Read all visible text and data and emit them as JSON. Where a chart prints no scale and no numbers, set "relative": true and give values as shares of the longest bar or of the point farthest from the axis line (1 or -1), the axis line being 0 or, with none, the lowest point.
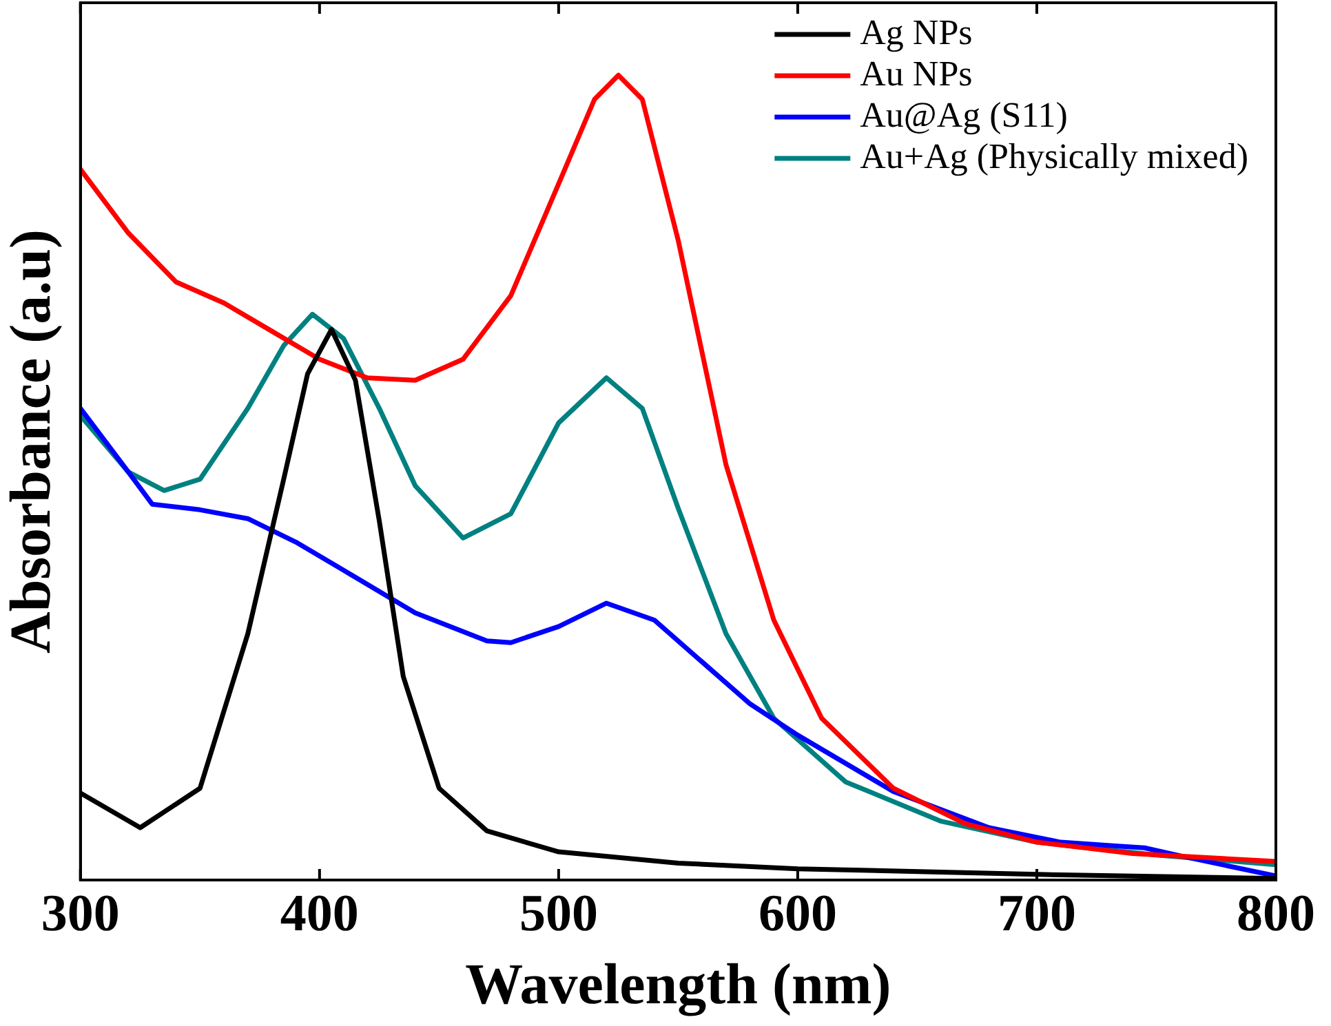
{
  "chart_data": {
    "type": "line",
    "xlabel": "Wavelength (nm)",
    "ylabel": "Absorbance (a.u)",
    "relative": true,
    "xlim": [
      300,
      800
    ],
    "xticks": [
      300,
      400,
      500,
      600,
      700,
      800
    ],
    "tick_labels": "x",
    "legend": "top right",
    "marker": "none",
    "line_style": "solid",
    "series": [
      {
        "name": "Ag NPs",
        "color": "#000000",
        "x": [
          300,
          325,
          350,
          370,
          385,
          395,
          405,
          415,
          425,
          435,
          450,
          470,
          500,
          550,
          600,
          700,
          800
        ],
        "values": [
          0.108,
          0.065,
          0.114,
          0.306,
          0.498,
          0.629,
          0.684,
          0.621,
          0.446,
          0.253,
          0.114,
          0.061,
          0.035,
          0.021,
          0.014,
          0.007,
          0.002
        ]
      },
      {
        "name": "Au NPs",
        "color": "#ff0000",
        "x": [
          300,
          320,
          340,
          360,
          380,
          400,
          420,
          440,
          460,
          480,
          500,
          515,
          525,
          535,
          550,
          570,
          590,
          610,
          640,
          670,
          700,
          740,
          800
        ],
        "values": [
          0.883,
          0.804,
          0.743,
          0.717,
          0.682,
          0.647,
          0.624,
          0.621,
          0.647,
          0.726,
          0.865,
          0.97,
          1,
          0.97,
          0.795,
          0.516,
          0.323,
          0.201,
          0.114,
          0.07,
          0.047,
          0.033,
          0.023
        ]
      },
      {
        "name": "Au@Ag (S11)",
        "color": "#0000ff",
        "x": [
          300,
          320,
          330,
          350,
          370,
          390,
          410,
          440,
          470,
          480,
          500,
          520,
          540,
          560,
          580,
          600,
          640,
          680,
          710,
          735,
          745,
          760,
          800
        ],
        "values": [
          0.586,
          0.507,
          0.467,
          0.46,
          0.449,
          0.42,
          0.385,
          0.332,
          0.297,
          0.295,
          0.315,
          0.344,
          0.323,
          0.271,
          0.219,
          0.18,
          0.11,
          0.065,
          0.047,
          0.042,
          0.04,
          0.03,
          0.005
        ]
      },
      {
        "name": "Au+Ag (Physically mixed)",
        "color": "#008080",
        "x": [
          300,
          320,
          335,
          350,
          370,
          385,
          397,
          410,
          425,
          440,
          460,
          480,
          500,
          520,
          535,
          550,
          570,
          590,
          620,
          660,
          700,
          750,
          800
        ],
        "values": [
          0.577,
          0.507,
          0.484,
          0.498,
          0.586,
          0.664,
          0.703,
          0.673,
          0.586,
          0.49,
          0.425,
          0.455,
          0.568,
          0.624,
          0.586,
          0.462,
          0.306,
          0.201,
          0.122,
          0.073,
          0.047,
          0.031,
          0.019
        ]
      }
    ]
  }
}
